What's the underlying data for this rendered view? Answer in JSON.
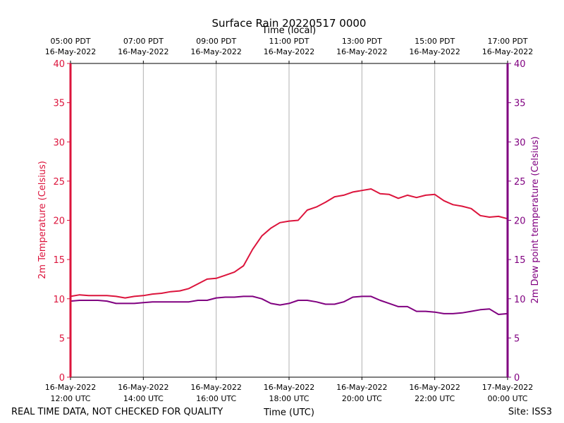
{
  "chart_data": {
    "type": "line",
    "title": "Surface Rain 20220517 0000",
    "top_axis_label": "Time (local)",
    "top_tick_labels": [
      [
        "05:00 PDT",
        "16-May-2022"
      ],
      [
        "07:00 PDT",
        "16-May-2022"
      ],
      [
        "09:00 PDT",
        "16-May-2022"
      ],
      [
        "11:00 PDT",
        "16-May-2022"
      ],
      [
        "13:00 PDT",
        "16-May-2022"
      ],
      [
        "15:00 PDT",
        "16-May-2022"
      ],
      [
        "17:00 PDT",
        "16-May-2022"
      ]
    ],
    "xlabel": "Time (UTC)",
    "x_tick_hours": [
      12,
      14,
      16,
      18,
      20,
      22,
      24
    ],
    "x_tick_labels": [
      [
        "16-May-2022",
        "12:00 UTC"
      ],
      [
        "16-May-2022",
        "14:00 UTC"
      ],
      [
        "16-May-2022",
        "16:00 UTC"
      ],
      [
        "16-May-2022",
        "18:00 UTC"
      ],
      [
        "16-May-2022",
        "20:00 UTC"
      ],
      [
        "16-May-2022",
        "22:00 UTC"
      ],
      [
        "17-May-2022",
        "00:00 UTC"
      ]
    ],
    "xlim_hours": [
      12,
      24
    ],
    "ylabel_left": "2m Temperature (Celsius)",
    "ylabel_right": "2m Dew point temperature (Celsius)",
    "ylim": [
      0,
      40
    ],
    "y_ticks": [
      0,
      5,
      10,
      15,
      20,
      25,
      30,
      35,
      40
    ],
    "grid": "vertical",
    "series": [
      {
        "color": "#dc143c",
        "axis": "left",
        "x": [
          12.0,
          12.25,
          12.5,
          12.75,
          13.0,
          13.25,
          13.5,
          13.75,
          14.0,
          14.25,
          14.5,
          14.75,
          15.0,
          15.25,
          15.5,
          15.75,
          16.0,
          16.25,
          16.5,
          16.75,
          17.0,
          17.25,
          17.5,
          17.75,
          18.0,
          18.25,
          18.5,
          18.75,
          19.0,
          19.25,
          19.5,
          19.75,
          20.0,
          20.25,
          20.5,
          20.75,
          21.0,
          21.25,
          21.5,
          21.75,
          22.0,
          22.25,
          22.5,
          22.75,
          23.0,
          23.25,
          23.5,
          23.75,
          24.0
        ],
        "values": [
          10.3,
          10.5,
          10.4,
          10.4,
          10.4,
          10.3,
          10.1,
          10.3,
          10.4,
          10.6,
          10.7,
          10.9,
          11.0,
          11.3,
          11.9,
          12.5,
          12.6,
          13.0,
          13.4,
          14.2,
          16.3,
          18.0,
          19.0,
          19.7,
          19.9,
          20.0,
          21.3,
          21.7,
          22.3,
          23.0,
          23.2,
          23.6,
          23.8,
          24.0,
          23.4,
          23.3,
          22.8,
          23.2,
          22.9,
          23.2,
          23.3,
          22.5,
          22.0,
          21.8,
          21.5,
          20.6,
          20.4,
          20.5,
          20.2
        ]
      },
      {
        "color": "#800080",
        "axis": "right",
        "x": [
          12.0,
          12.25,
          12.5,
          12.75,
          13.0,
          13.25,
          13.5,
          13.75,
          14.0,
          14.25,
          14.5,
          14.75,
          15.0,
          15.25,
          15.5,
          15.75,
          16.0,
          16.25,
          16.5,
          16.75,
          17.0,
          17.25,
          17.5,
          17.75,
          18.0,
          18.25,
          18.5,
          18.75,
          19.0,
          19.25,
          19.5,
          19.75,
          20.0,
          20.25,
          20.5,
          20.75,
          21.0,
          21.25,
          21.5,
          21.75,
          22.0,
          22.25,
          22.5,
          22.75,
          23.0,
          23.25,
          23.5,
          23.75,
          24.0
        ],
        "values": [
          9.7,
          9.8,
          9.8,
          9.8,
          9.7,
          9.4,
          9.4,
          9.4,
          9.5,
          9.6,
          9.6,
          9.6,
          9.6,
          9.6,
          9.8,
          9.8,
          10.1,
          10.2,
          10.2,
          10.3,
          10.3,
          10.0,
          9.4,
          9.2,
          9.4,
          9.8,
          9.8,
          9.6,
          9.3,
          9.3,
          9.6,
          10.2,
          10.3,
          10.3,
          9.8,
          9.4,
          9.0,
          9.0,
          8.4,
          8.4,
          8.3,
          8.1,
          8.1,
          8.2,
          8.4,
          8.6,
          8.7,
          8.0,
          8.1
        ]
      }
    ],
    "footer_left": "REAL TIME DATA, NOT CHECKED FOR QUALITY",
    "footer_right": "Site: ISS3"
  }
}
